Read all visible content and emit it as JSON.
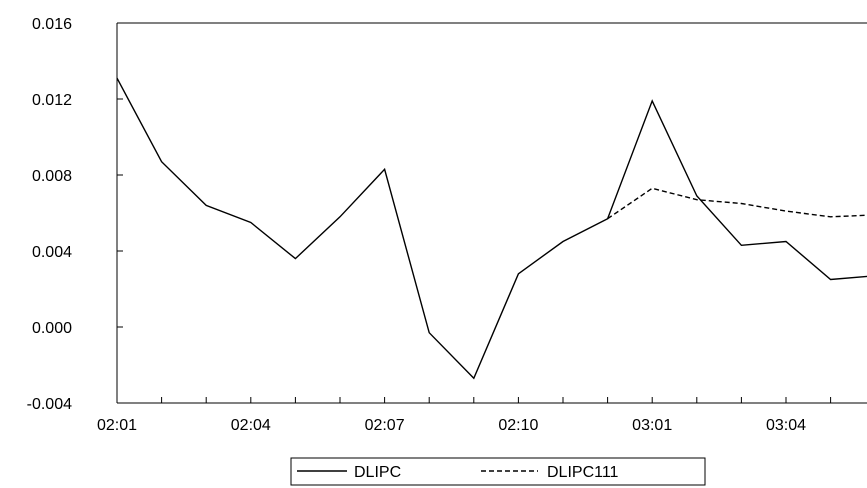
{
  "chart_data": {
    "type": "line",
    "categories": [
      "02:01",
      "02:02",
      "02:03",
      "02:04",
      "02:05",
      "02:06",
      "02:07",
      "02:08",
      "02:09",
      "02:10",
      "02:11",
      "02:12",
      "03:01",
      "03:02",
      "03:03",
      "03:04",
      "03:05",
      "03:06"
    ],
    "x_tick_labels": [
      "02:01",
      "02:04",
      "02:07",
      "02:10",
      "03:01",
      "03:04"
    ],
    "ylim": [
      -0.004,
      0.016
    ],
    "y_ticks": [
      "-0.004",
      "0.000",
      "0.004",
      "0.008",
      "0.012",
      "0.016"
    ],
    "series": [
      {
        "name": "DLIPC",
        "style": "solid",
        "color": "#000000",
        "values": [
          0.0131,
          0.0087,
          0.0064,
          0.0055,
          0.0036,
          0.0058,
          0.0083,
          -0.0003,
          -0.0027,
          0.0028,
          0.0045,
          0.0057,
          0.0119,
          0.0069,
          0.0043,
          0.0045,
          0.0025,
          0.0027
        ]
      },
      {
        "name": "DLIPC111",
        "style": "dashed",
        "color": "#000000",
        "values": [
          null,
          null,
          null,
          null,
          null,
          null,
          null,
          null,
          null,
          null,
          null,
          0.0057,
          0.0073,
          0.0067,
          0.0065,
          0.0061,
          0.0058,
          0.0059
        ]
      }
    ],
    "legend_position": "bottom",
    "grid": false
  }
}
